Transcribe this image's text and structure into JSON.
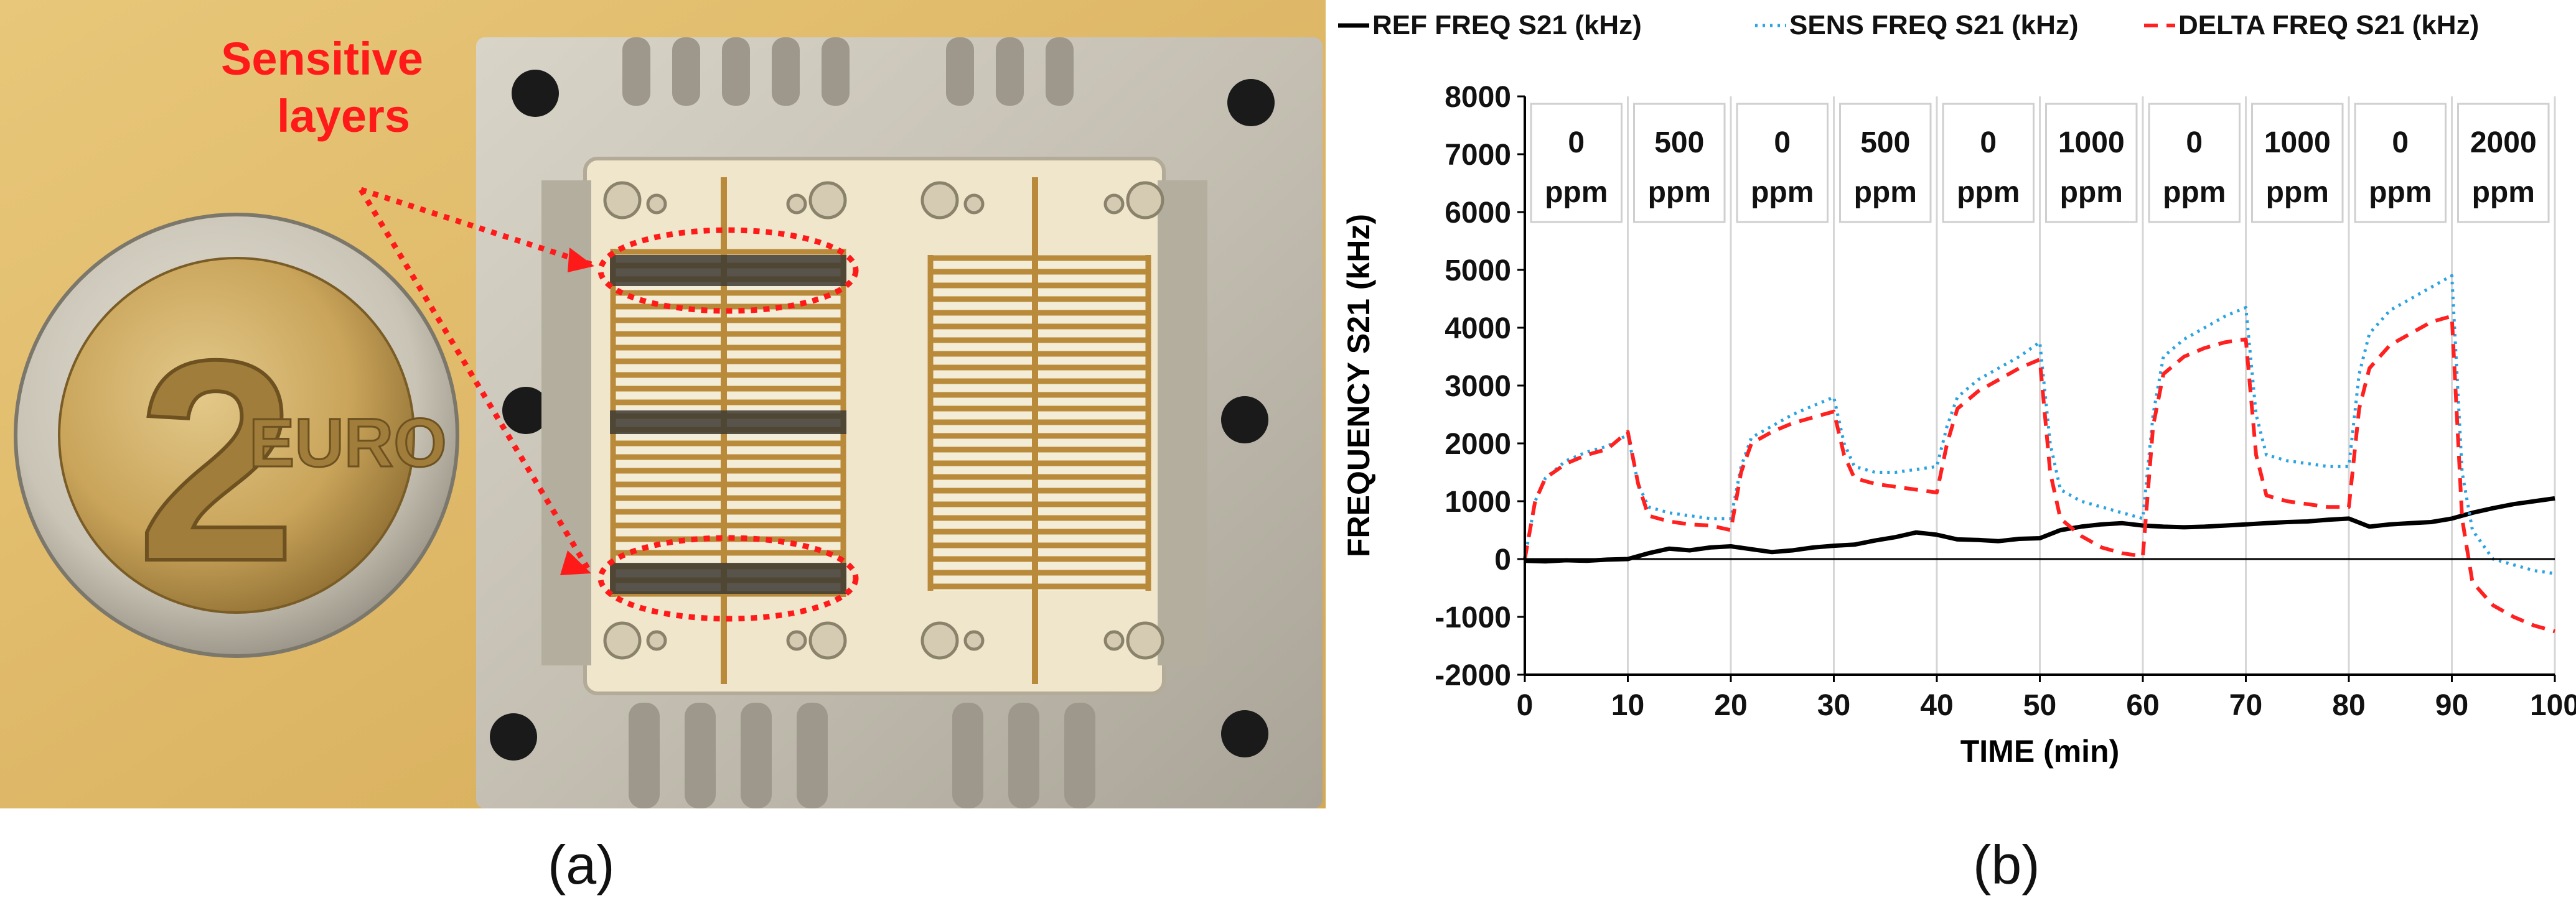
{
  "figure": {
    "panel_a": {
      "caption": "(a)",
      "annotation": "Sensitive layers",
      "coin": {
        "numeral": "2",
        "word": "EURO"
      }
    },
    "panel_b": {
      "caption": "(b)"
    }
  },
  "colors": {
    "ref": "#000000",
    "sens": "#2aa3e0",
    "delta": "#ff2020",
    "annotation": "#ff1a1a",
    "substrate": "#efe6cc",
    "metal": "#c4bfb2",
    "electrode": "#b98a3a"
  },
  "chart_data": {
    "type": "line",
    "xlabel": "TIME (min)",
    "ylabel": "FREQUENCY S21 (kHz)",
    "xlim": [
      0,
      100
    ],
    "ylim": [
      -2000,
      8000
    ],
    "xticks": [
      "0",
      "10",
      "20",
      "30",
      "40",
      "50",
      "60",
      "70",
      "80",
      "90",
      "100"
    ],
    "yticks": [
      "-2000",
      "-1000",
      "0",
      "1000",
      "2000",
      "3000",
      "4000",
      "5000",
      "6000",
      "7000",
      "8000"
    ],
    "grid": "vertical",
    "legend": {
      "placement": "top",
      "entries": [
        "REF FREQ S21 (kHz)",
        "SENS FREQ S21  (kHz)",
        "DELTA FREQ S21 (kHz)"
      ]
    },
    "phases": [
      {
        "value": "0",
        "unit": "ppm"
      },
      {
        "value": "500",
        "unit": "ppm"
      },
      {
        "value": "0",
        "unit": "ppm"
      },
      {
        "value": "500",
        "unit": "ppm"
      },
      {
        "value": "0",
        "unit": "ppm"
      },
      {
        "value": "1000",
        "unit": "ppm"
      },
      {
        "value": "0",
        "unit": "ppm"
      },
      {
        "value": "1000",
        "unit": "ppm"
      },
      {
        "value": "0",
        "unit": "ppm"
      },
      {
        "value": "2000",
        "unit": "ppm"
      }
    ],
    "series": [
      {
        "name": "REF FREQ S21 (kHz)",
        "style": "solid",
        "x": [
          0,
          2,
          4,
          6,
          8,
          10,
          12,
          14,
          16,
          18,
          20,
          22,
          24,
          26,
          28,
          30,
          32,
          34,
          36,
          38,
          40,
          42,
          44,
          46,
          48,
          50,
          52,
          54,
          56,
          58,
          60,
          62,
          64,
          66,
          68,
          70,
          72,
          74,
          76,
          78,
          80,
          82,
          84,
          86,
          88,
          90,
          92,
          94,
          96,
          98,
          100
        ],
        "y": [
          -30,
          -40,
          -20,
          -30,
          -10,
          0,
          100,
          180,
          150,
          200,
          220,
          170,
          120,
          150,
          200,
          230,
          250,
          320,
          380,
          460,
          420,
          340,
          330,
          310,
          350,
          360,
          500,
          560,
          600,
          620,
          580,
          560,
          550,
          560,
          580,
          600,
          620,
          640,
          650,
          680,
          700,
          560,
          600,
          620,
          640,
          700,
          800,
          880,
          950,
          1000,
          1050
        ]
      },
      {
        "name": "SENS FREQ S21  (kHz)",
        "style": "dotted",
        "x": [
          0,
          1,
          2,
          4,
          6,
          8,
          10,
          11,
          12,
          14,
          16,
          18,
          20,
          21,
          22,
          24,
          26,
          28,
          30,
          31,
          32,
          34,
          36,
          38,
          40,
          41,
          42,
          44,
          46,
          48,
          50,
          51,
          52,
          54,
          56,
          58,
          60,
          61,
          62,
          64,
          66,
          68,
          70,
          71,
          72,
          74,
          76,
          78,
          80,
          81,
          82,
          84,
          86,
          88,
          90,
          91,
          92,
          94,
          96,
          98,
          100
        ],
        "y": [
          0,
          1000,
          1400,
          1700,
          1850,
          1950,
          2150,
          1300,
          900,
          800,
          750,
          700,
          700,
          1600,
          2100,
          2300,
          2500,
          2650,
          2800,
          2000,
          1600,
          1500,
          1500,
          1550,
          1600,
          2300,
          2800,
          3100,
          3300,
          3500,
          3750,
          2000,
          1200,
          1000,
          900,
          800,
          700,
          2500,
          3500,
          3800,
          4000,
          4200,
          4350,
          2500,
          1800,
          1700,
          1650,
          1600,
          1600,
          3200,
          3900,
          4300,
          4500,
          4700,
          4900,
          1500,
          500,
          0,
          -100,
          -200,
          -250
        ]
      },
      {
        "name": "DELTA FREQ S21 (kHz)",
        "style": "dashed",
        "x": [
          0,
          1,
          2,
          4,
          6,
          8,
          10,
          11,
          12,
          14,
          16,
          18,
          20,
          21,
          22,
          24,
          26,
          28,
          30,
          31,
          32,
          34,
          36,
          38,
          40,
          41,
          42,
          44,
          46,
          48,
          50,
          51,
          52,
          54,
          56,
          58,
          60,
          61,
          62,
          64,
          66,
          68,
          70,
          71,
          72,
          74,
          76,
          78,
          80,
          81,
          82,
          84,
          86,
          88,
          90,
          91,
          92,
          94,
          96,
          98,
          100
        ],
        "y": [
          0,
          1000,
          1400,
          1650,
          1800,
          1900,
          2200,
          1300,
          750,
          650,
          600,
          580,
          500,
          1500,
          2000,
          2200,
          2350,
          2450,
          2550,
          1800,
          1400,
          1300,
          1250,
          1200,
          1150,
          2000,
          2600,
          2900,
          3100,
          3300,
          3450,
          1500,
          700,
          400,
          200,
          100,
          50,
          2300,
          3200,
          3500,
          3650,
          3750,
          3800,
          1800,
          1100,
          1000,
          950,
          900,
          900,
          2600,
          3300,
          3700,
          3900,
          4100,
          4200,
          700,
          -400,
          -800,
          -1000,
          -1150,
          -1250
        ]
      }
    ]
  }
}
